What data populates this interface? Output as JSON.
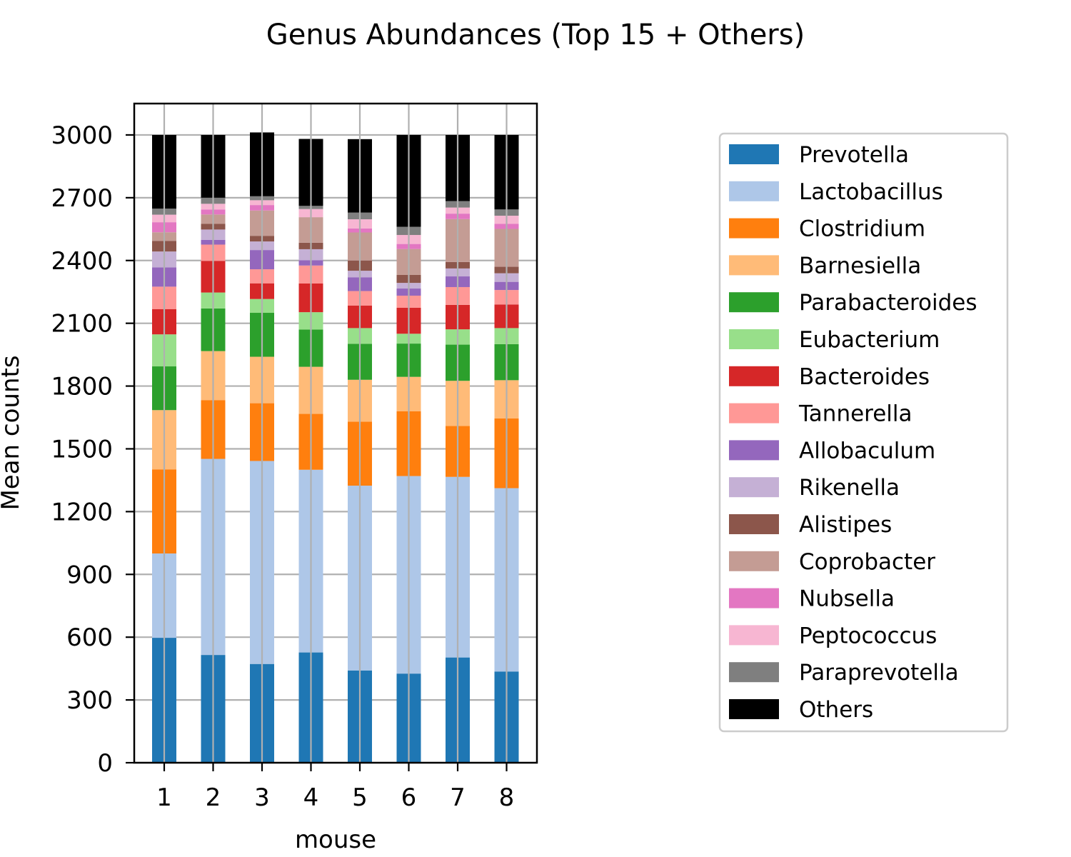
{
  "chart_data": {
    "type": "bar",
    "stacked": true,
    "title": "Genus Abundances (Top 15  + Others)",
    "xlabel": "mouse",
    "ylabel": "Mean counts",
    "categories": [
      "1",
      "2",
      "3",
      "4",
      "5",
      "6",
      "7",
      "8"
    ],
    "ylim": [
      0,
      3150
    ],
    "yticks": [
      "0",
      "300",
      "600",
      "900",
      "1200",
      "1500",
      "1800",
      "2100",
      "2400",
      "2700",
      "3000"
    ],
    "grid": true,
    "legend_position": "right",
    "series": [
      {
        "name": "Prevotella",
        "color": "#1f77b4",
        "values": [
          597,
          515,
          472,
          527,
          441,
          426,
          503,
          436
        ]
      },
      {
        "name": "Lactobacillus",
        "color": "#aec7e8",
        "values": [
          403,
          937,
          970,
          873,
          883,
          944,
          863,
          876
        ]
      },
      {
        "name": "Clostridium",
        "color": "#ff7f0e",
        "values": [
          402,
          281,
          276,
          267,
          306,
          310,
          243,
          333
        ]
      },
      {
        "name": "Barnesiella",
        "color": "#ffbb78",
        "values": [
          283,
          234,
          222,
          225,
          200,
          164,
          216,
          183
        ]
      },
      {
        "name": "Parabacteroides",
        "color": "#2ca02c",
        "values": [
          209,
          204,
          210,
          178,
          172,
          159,
          173,
          172
        ]
      },
      {
        "name": "Eubacterium",
        "color": "#98df8a",
        "values": [
          153,
          76,
          66,
          83,
          75,
          47,
          73,
          77
        ]
      },
      {
        "name": "Bacteroides",
        "color": "#d62728",
        "values": [
          121,
          151,
          75,
          137,
          108,
          124,
          117,
          113
        ]
      },
      {
        "name": "Tannerella",
        "color": "#ff9896",
        "values": [
          107,
          78,
          67,
          86,
          69,
          58,
          85,
          69
        ]
      },
      {
        "name": "Allobaculum",
        "color": "#9467bd",
        "values": [
          92,
          23,
          92,
          25,
          66,
          34,
          51,
          39
        ]
      },
      {
        "name": "Rikenella",
        "color": "#c5b0d5",
        "values": [
          76,
          49,
          41,
          53,
          31,
          27,
          38,
          41
        ]
      },
      {
        "name": "Alistipes",
        "color": "#8c564b",
        "values": [
          51,
          27,
          27,
          31,
          49,
          38,
          31,
          31
        ]
      },
      {
        "name": "Coprobacter",
        "color": "#c49c94",
        "values": [
          41,
          45,
          121,
          122,
          134,
          124,
          205,
          181
        ]
      },
      {
        "name": "Nubsella",
        "color": "#e377c2",
        "values": [
          48,
          24,
          26,
          0,
          19,
          24,
          26,
          24
        ]
      },
      {
        "name": "Peptococcus",
        "color": "#f7b6d2",
        "values": [
          36,
          27,
          23,
          39,
          44,
          43,
          29,
          39
        ]
      },
      {
        "name": "Paraprevotella",
        "color": "#7f7f7f",
        "values": [
          29,
          29,
          19,
          15,
          32,
          39,
          31,
          30
        ]
      },
      {
        "name": "Others",
        "color": "#000000",
        "values": [
          352,
          300,
          305,
          320,
          351,
          439,
          316,
          356
        ]
      }
    ]
  }
}
